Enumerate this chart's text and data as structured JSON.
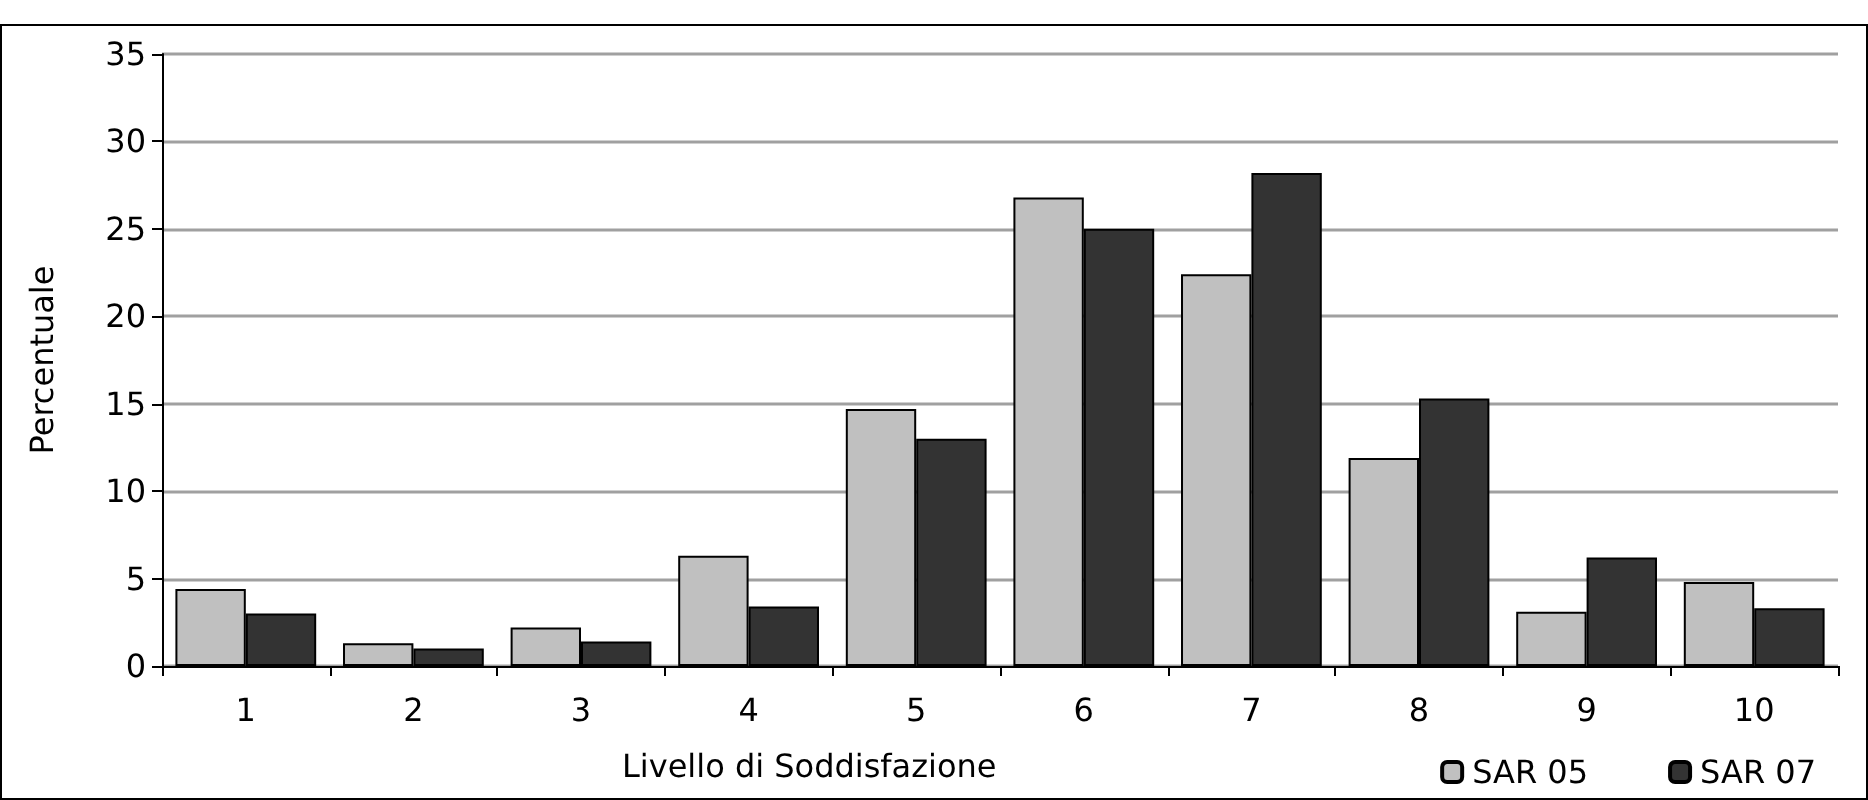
{
  "chart_data": {
    "type": "bar",
    "xlabel": "Livello di Soddisfazione",
    "ylabel": "Percentuale",
    "categories": [
      "1",
      "2",
      "3",
      "4",
      "5",
      "6",
      "7",
      "8",
      "9",
      "10"
    ],
    "series": [
      {
        "name": "SAR 05",
        "color": "#c0c0c0",
        "values": [
          4.4,
          1.3,
          2.2,
          6.3,
          14.7,
          26.8,
          22.4,
          11.9,
          3.1,
          4.8
        ]
      },
      {
        "name": "SAR 07",
        "color": "#333333",
        "values": [
          3.0,
          1.0,
          1.4,
          3.4,
          13.0,
          25.0,
          28.2,
          15.3,
          6.2,
          3.3
        ]
      }
    ],
    "ylim": [
      0,
      35
    ],
    "yticks": [
      0,
      5,
      10,
      15,
      20,
      25,
      30,
      35
    ],
    "grid": "y",
    "legend": "bottom right"
  }
}
